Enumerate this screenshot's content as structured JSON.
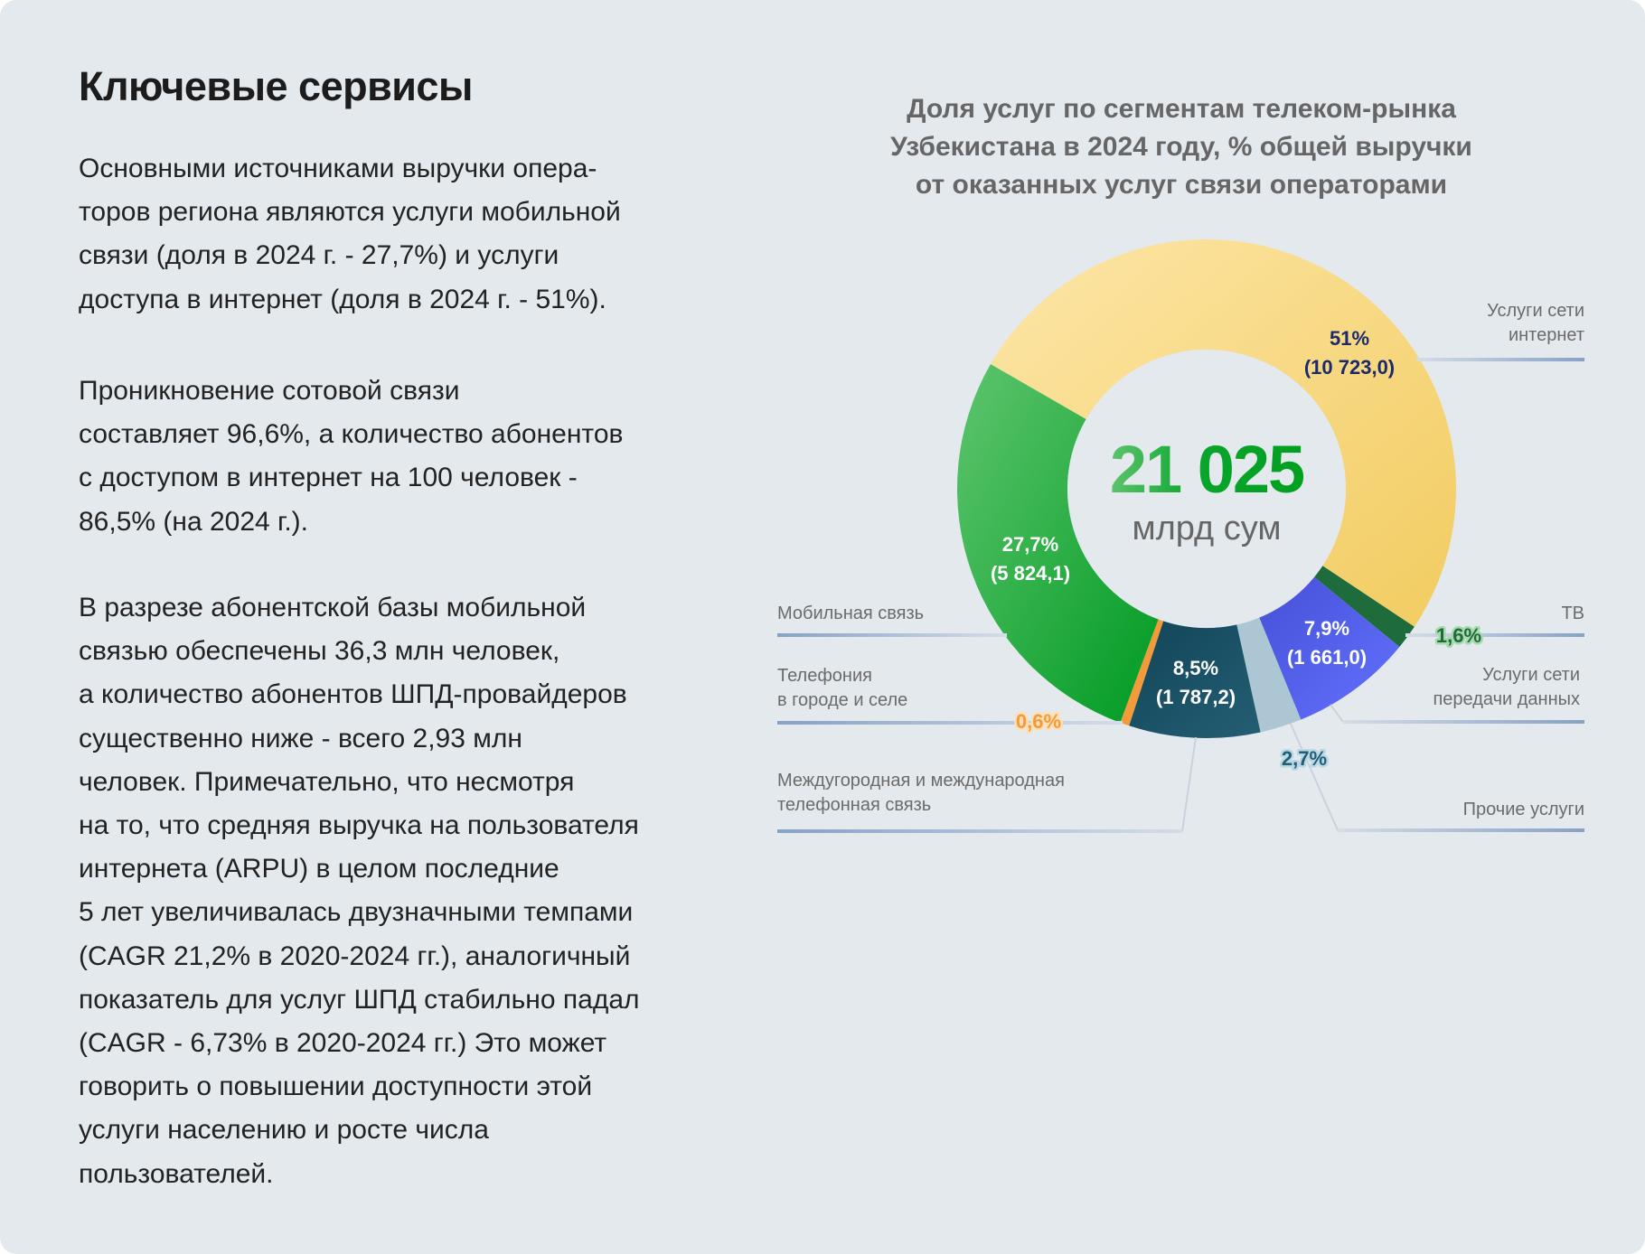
{
  "heading": "Ключевые сервисы",
  "paragraphs": [
    [
      "Основными источниками выручки опера-",
      "торов региона являются услуги мобильной",
      "связи (доля в 2024 г. - 27,7%) и услуги",
      "доступа в интернет (доля в 2024 г. - 51%)."
    ],
    [
      "Проникновение сотовой связи",
      "составляет 96,6%, а количество абонентов",
      "с доступом в интернет на 100 человек  -",
      "86,5% (на 2024 г.)."
    ],
    [
      "В разрезе абонентской базы мобильной",
      "связью обеспечены 36,3 млн человек,",
      "а количество абонентов ШПД-провайдеров",
      "существенно ниже - всего 2,93 млн",
      "человек. Примечательно, что несмотря",
      "на то, что средняя выручка на пользователя",
      "интернета (ARPU) в целом последние",
      "5 лет увеличивалась двузначными темпами",
      "(CAGR 21,2% в 2020-2024 гг.), аналогичный",
      "показатель для услуг ШПД стабильно падал",
      "(CAGR - 6,73% в 2020-2024 гг.) Это может",
      "говорить о повышении доступности этой",
      "услуги населению и росте числа",
      "пользователей."
    ]
  ],
  "chart_data": {
    "type": "pie",
    "donut": true,
    "title": [
      "Доля услуг по сегментам телеком-рынка",
      "Узбекистана в 2024 году, % общей выручки",
      "от оказанных услуг связи операторами"
    ],
    "center": {
      "value": "21 025",
      "unit": "млрд сум"
    },
    "unit": "%",
    "slices": [
      {
        "name": "Услуги сети интернет",
        "label_lines": [
          "Услуги сети",
          "интернет"
        ],
        "value": 51,
        "pct_label": "51%",
        "amount_label": "(10 723,0)",
        "color": "#f2cc60",
        "color2": "#fde6a8"
      },
      {
        "name": "ТВ",
        "label_lines": [
          "ТВ"
        ],
        "value": 1.6,
        "pct_label": "1,6%",
        "color": "#1e6b3c",
        "color2": "#1e6b3c"
      },
      {
        "name": "Услуги сети передачи данных",
        "label_lines": [
          "Услуги сети",
          "передачи данных"
        ],
        "value": 7.9,
        "pct_label": "7,9%",
        "amount_label": "(1 661,0)",
        "color": "#6272ff",
        "color2": "#4650d6"
      },
      {
        "name": "Прочие услуги",
        "label_lines": [
          "Прочие услуги"
        ],
        "value": 2.7,
        "pct_label": "2,7%",
        "color": "#adc6d3",
        "color2": "#adc6d3"
      },
      {
        "name": "Междугородная и международная телефонная связь",
        "label_lines": [
          "Междугородная и международная",
          "телефонная связь"
        ],
        "value": 8.5,
        "pct_label": "8,5%",
        "amount_label": "(1 787,2)",
        "color": "#245e74",
        "color2": "#124558"
      },
      {
        "name": "Телефония в городе и селе",
        "label_lines": [
          "Телефония",
          "в городе и селе"
        ],
        "value": 0.6,
        "pct_label": "0,6%",
        "color": "#f39a3a",
        "color2": "#f39a3a"
      },
      {
        "name": "Мобильная связь",
        "label_lines": [
          "Мобильная связь"
        ],
        "value": 27.7,
        "pct_label": "27,7%",
        "amount_label": "(5 824,1)",
        "color": "#009a22",
        "color2": "#5ec56e"
      }
    ]
  }
}
